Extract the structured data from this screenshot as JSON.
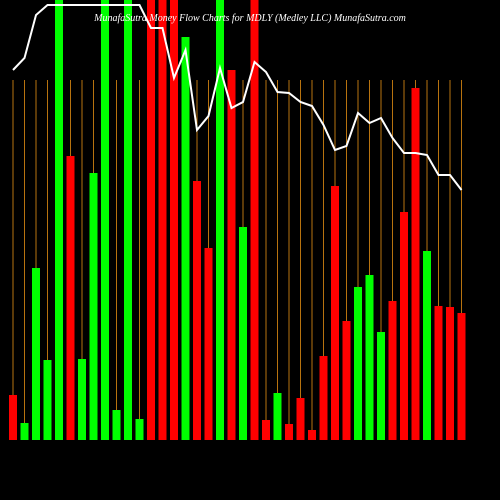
{
  "chart_data": {
    "type": "bar",
    "title": "MunafaSutra  Money Flow  Charts for MDLY  (Medley LLC) MunafaSutra.com",
    "values": [
      45,
      17,
      172,
      80,
      440,
      284,
      81,
      267,
      440,
      30,
      440,
      21,
      440,
      440,
      440,
      403,
      259,
      192,
      440,
      370,
      213,
      440,
      20,
      47,
      16,
      42,
      10,
      84,
      254,
      119,
      153,
      165,
      108,
      139,
      228,
      352,
      189,
      134,
      133,
      127
    ],
    "colors": [
      "#ff0000",
      "#00ff00",
      "#00ff00",
      "#00ff00",
      "#00ff00",
      "#ff0000",
      "#00ff00",
      "#00ff00",
      "#00ff00",
      "#00ff00",
      "#00ff00",
      "#00ff00",
      "#ff0000",
      "#ff0000",
      "#ff0000",
      "#00ff00",
      "#ff0000",
      "#ff0000",
      "#00ff00",
      "#ff0000",
      "#00ff00",
      "#ff0000",
      "#ff0000",
      "#00ff00",
      "#ff0000",
      "#ff0000",
      "#ff0000",
      "#ff0000",
      "#ff0000",
      "#ff0000",
      "#00ff00",
      "#00ff00",
      "#00ff00",
      "#ff0000",
      "#ff0000",
      "#ff0000",
      "#00ff00",
      "#ff0000",
      "#ff0000",
      "#ff0000"
    ],
    "line": {
      "color": "#ffffff",
      "values": [
        370,
        382,
        425,
        435,
        435,
        435,
        435,
        435,
        435,
        435,
        435,
        435,
        412,
        412,
        362,
        390,
        310,
        324,
        372,
        332,
        338,
        378,
        368,
        348,
        347,
        338,
        334,
        315,
        290,
        294,
        327,
        317,
        322,
        302,
        287,
        287,
        285,
        265,
        265,
        250
      ]
    },
    "ylim": [
      0,
      440
    ]
  }
}
